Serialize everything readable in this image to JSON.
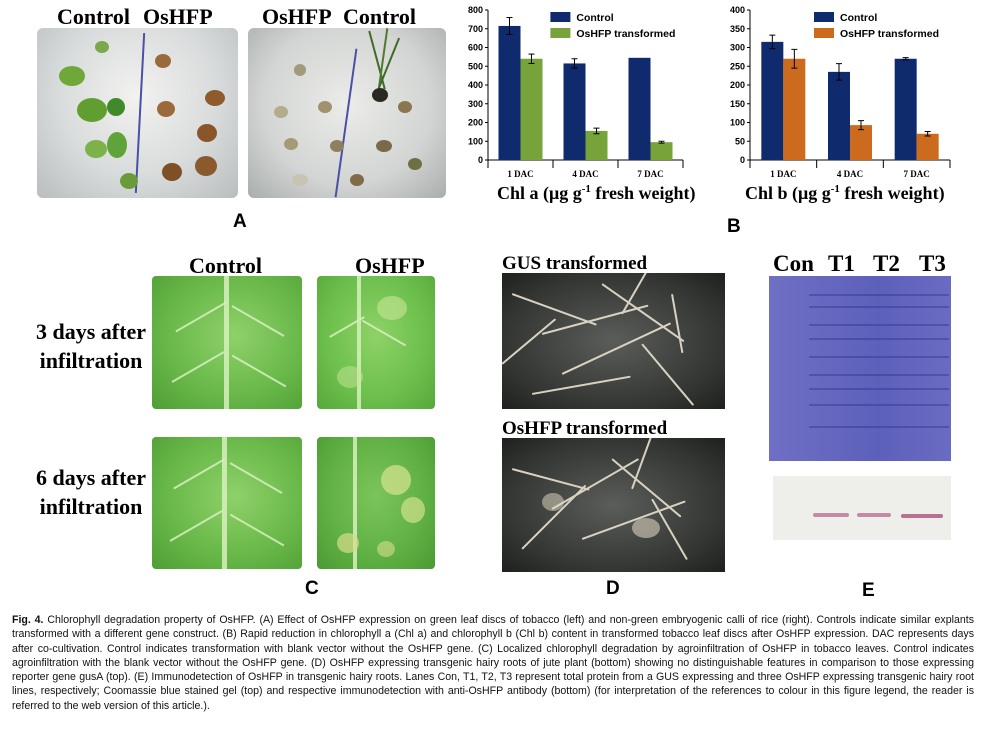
{
  "panelA": {
    "label_left": "Control",
    "label_left2": "OsHFP",
    "label_right": "OsHFP",
    "label_right2": "Control",
    "letter": "A"
  },
  "panelB": {
    "letter": "B",
    "charts": [
      {
        "type": "bar",
        "categories": [
          "1 DAC",
          "4 DAC",
          "7 DAC"
        ],
        "series": [
          {
            "name": "Control",
            "values": [
              715,
              515,
              545
            ],
            "errors": [
              45,
              25,
              0
            ],
            "color": "#102a6e"
          },
          {
            "name": "OsHFP transformed",
            "values": [
              540,
              155,
              95
            ],
            "errors": [
              25,
              15,
              5
            ],
            "color": "#76a33a"
          }
        ],
        "ylim": [
          0,
          800
        ],
        "yticks": [
          0,
          100,
          200,
          300,
          400,
          500,
          600,
          700,
          800
        ],
        "xlabel_main": "Chl a (μg g",
        "xlabel_sup": "-1",
        "xlabel_tail": " fresh weight)",
        "legend": "top-right"
      },
      {
        "type": "bar",
        "categories": [
          "1 DAC",
          "4 DAC",
          "7 DAC"
        ],
        "series": [
          {
            "name": "Control",
            "values": [
              315,
              235,
              270
            ],
            "errors": [
              18,
              22,
              3
            ],
            "color": "#102a6e"
          },
          {
            "name": "OsHFP transformed",
            "values": [
              270,
              93,
              70
            ],
            "errors": [
              25,
              12,
              6
            ],
            "color": "#cc6a1e"
          }
        ],
        "ylim": [
          0,
          400
        ],
        "yticks": [
          0,
          50,
          100,
          150,
          200,
          250,
          300,
          350,
          400
        ],
        "xlabel_main": "Chl b (μg g",
        "xlabel_sup": "-1",
        "xlabel_tail": " fresh weight)",
        "legend": "top-right"
      }
    ]
  },
  "panelC": {
    "col1": "Control",
    "col2": "OsHFP",
    "row1_line1": "3 days after",
    "row1_line2": "infiltration",
    "row2_line1": "6 days after",
    "row2_line2": "infiltration",
    "letter": "C"
  },
  "panelD": {
    "top": "GUS transformed",
    "bottom": "OsHFP transformed",
    "letter": "D"
  },
  "panelE": {
    "lanes": [
      "Con",
      "T1",
      "T2",
      "T3"
    ],
    "letter": "E"
  },
  "caption": {
    "fig": "Fig. 4.",
    "text": "Chlorophyll degradation property of OsHFP. (A) Effect of OsHFP expression on green leaf discs of tobacco (left) and non-green embryogenic calli of rice (right). Controls indicate similar explants transformed with a different gene construct. (B) Rapid reduction in chlorophyll a (Chl a) and chlorophyll b (Chl b) content in transformed tobacco leaf discs after OsHFP expression. DAC represents days after co-cultivation. Control indicates transformation with blank vector without the OsHFP gene. (C) Localized chlorophyll degradation by agroinfiltration of OsHFP in tobacco leaves. Control indicates agroinfiltration with the blank vector without the OsHFP gene. (D) OsHFP expressing transgenic hairy roots of jute plant (bottom) showing no distinguishable features in comparison to those expressing reporter gene gusA (top). (E) Immunodetection of OsHFP in transgenic hairy roots. Lanes Con, T1, T2, T3 represent total protein from a GUS expressing and three OsHFP expressing transgenic hairy root lines, respectively; Coomassie blue stained gel (top) and respective immunodetection with anti-OsHFP antibody (bottom) (for interpretation of the references to colour in this figure legend, the reader is referred to the web version of this article.)."
  }
}
